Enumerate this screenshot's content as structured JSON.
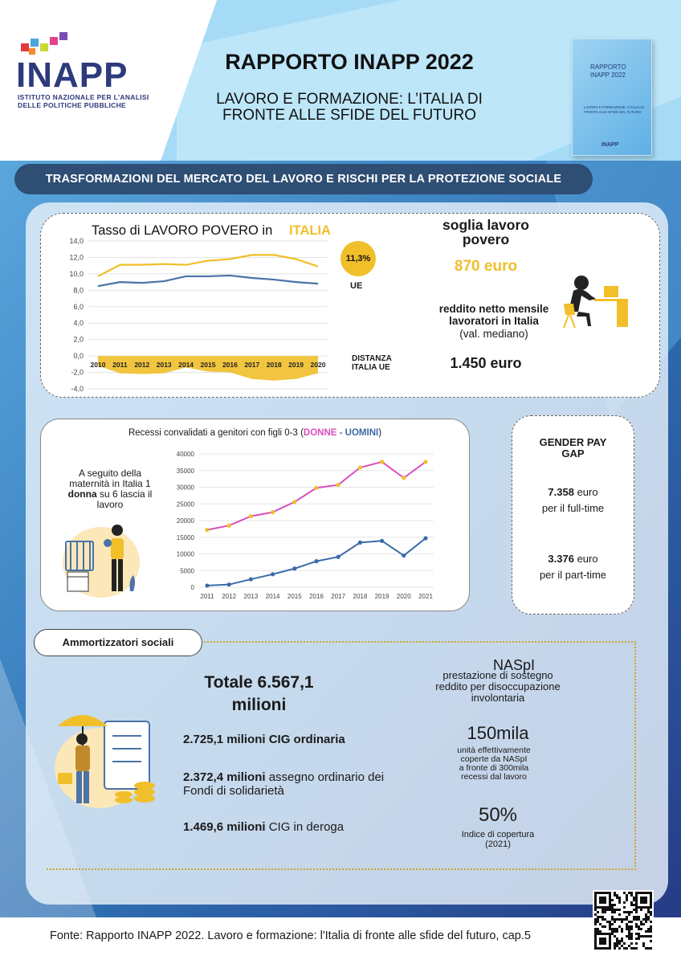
{
  "header": {
    "logo_text": "INAPP",
    "logo_subtitle_1": "ISTITUTO NAZIONALE PER L'ANALISI",
    "logo_subtitle_2": "DELLE POLITICHE PUBBLICHE",
    "title": "RAPPORTO INAPP 2022",
    "subtitle_1": "LAVORO E FORMAZIONE: L’ITALIA DI",
    "subtitle_2": "FRONTE ALLE SFIDE DEL FUTURO",
    "cover_line_1": "RAPPORTO",
    "cover_line_2": "INAPP 2022",
    "cover_line_3": "LAVORO E FORMAZIONE: L'ITALIA DI FRONTE ALLE SFIDE DEL FUTURO",
    "cover_logo": "INAPP"
  },
  "banner": "TRASFORMAZIONI DEL MERCATO DEL LAVORO E RISCHI PER LA PROTEZIONE SOCIALE",
  "section1": {
    "chart_title": "Tasso di LAVORO POVERO in",
    "chart_title_highlight": "ITALIA",
    "badge": "11,3%",
    "label_ue": "UE",
    "label_distance_1": "DISTANZA",
    "label_distance_2": "ITALIA UE",
    "soglia_label_1": "soglia lavoro",
    "soglia_label_2": "povero",
    "soglia_value": "870 euro",
    "reddito_label_1": "reddito netto mensile",
    "reddito_label_2": "lavoratori in Italia",
    "reddito_note": "(val. mediano)",
    "reddito_value": "1.450 euro"
  },
  "section2": {
    "chart_title_prefix": "Recessi convalidati a genitori con figli 0-3 (",
    "chart_title_donne": "DONNE",
    "chart_title_sep": " - ",
    "chart_title_uomini": "UOMINI",
    "chart_title_suffix": ")",
    "maternity_1": "A seguito della",
    "maternity_2": "maternità in Italia 1",
    "maternity_bold": "donna",
    "maternity_3": " su 6 lascia il",
    "maternity_4": "lavoro",
    "gap_title_1": "GENDER PAY",
    "gap_title_2": "GAP",
    "gap_full_value": "7.358",
    "gap_full_unit": " euro",
    "gap_full_label": "per il full-time",
    "gap_part_value": "3.376",
    "gap_part_unit": " euro",
    "gap_part_label": "per il part-time"
  },
  "section3": {
    "pill": "Ammortizzatori sociali",
    "total_label": "Totale 6.567,1",
    "total_value": "milioni",
    "item1_bold": "2.725,1 milioni CIG ordinaria",
    "item2_bold": "2.372,4 milioni",
    "item2_rest": " assegno ordinario dei",
    "item2_line2": "Fondi di solidarietà",
    "item3_bold": "1.469,6 milioni",
    "item3_rest": " CIG in deroga",
    "naspi_title": "NASpI",
    "naspi_desc_1": "prestazione di sostegno",
    "naspi_desc_2": "reddito per disoccupazione",
    "naspi_desc_3": "involontaria",
    "naspi_units": "150mila",
    "naspi_units_note_1": "unità effettivamente",
    "naspi_units_note_2": "coperte da NASpI",
    "naspi_units_note_3": "a fronte di 300mila",
    "naspi_units_note_4": "recessi dal lavoro",
    "naspi_cov": "50%",
    "naspi_cov_note_1": "Indice di copertura",
    "naspi_cov_note_2": "(2021)"
  },
  "footer": "Fonte: Rapporto INAPP 2022. Lavoro e formazione: l'Italia di fronte alle sfide del futuro, cap.5",
  "colors": {
    "italy": "#f0bf2a",
    "ue": "#4a73a8",
    "donne": "#d84fbd",
    "uomini": "#3b6ba8",
    "banner": "#2e4e74"
  },
  "chart_data": [
    {
      "type": "line",
      "title": "Tasso di LAVORO POVERO in ITALIA",
      "x": [
        "2010",
        "2011",
        "2012",
        "2013",
        "2014",
        "2015",
        "2016",
        "2017",
        "2018",
        "2019",
        "2020"
      ],
      "ylim": [
        -4,
        14
      ],
      "yticks": [
        "14,0",
        "12,0",
        "10,0",
        "8,0",
        "6,0",
        "4,0",
        "2,0",
        "0,0",
        "-2,0",
        "-4,0"
      ],
      "series": [
        {
          "name": "ITALIA",
          "type": "line",
          "values": [
            9.7,
            11.1,
            11.1,
            11.2,
            11.1,
            11.6,
            11.8,
            12.3,
            12.3,
            11.8,
            10.9
          ]
        },
        {
          "name": "UE",
          "type": "line",
          "values": [
            8.5,
            9.0,
            8.9,
            9.1,
            9.7,
            9.7,
            9.8,
            9.5,
            9.3,
            9.0,
            8.8
          ]
        },
        {
          "name": "DISTANZA ITALIA UE",
          "type": "area",
          "values": [
            -1.2,
            -2.1,
            -2.2,
            -2.1,
            -1.4,
            -1.9,
            -2.0,
            -2.8,
            -3.0,
            -2.8,
            -2.1
          ]
        }
      ],
      "grid": true
    },
    {
      "type": "line",
      "title": "Recessi convalidati a genitori con figli 0-3 (DONNE - UOMINI)",
      "x": [
        "2011",
        "2012",
        "2013",
        "2014",
        "2015",
        "2016",
        "2017",
        "2018",
        "2019",
        "2020",
        "2021"
      ],
      "ylim": [
        0,
        40000
      ],
      "yticks": [
        "40000",
        "35000",
        "30000",
        "25000",
        "20000",
        "15000",
        "10000",
        "5000",
        "0"
      ],
      "series": [
        {
          "name": "DONNE",
          "values": [
            17200,
            18500,
            21300,
            22500,
            25600,
            29800,
            30700,
            35900,
            37600,
            32800,
            37600
          ]
        },
        {
          "name": "UOMINI",
          "values": [
            500,
            800,
            2400,
            3900,
            5600,
            7800,
            9100,
            13400,
            13900,
            9500,
            14700
          ]
        }
      ],
      "grid": true
    }
  ]
}
